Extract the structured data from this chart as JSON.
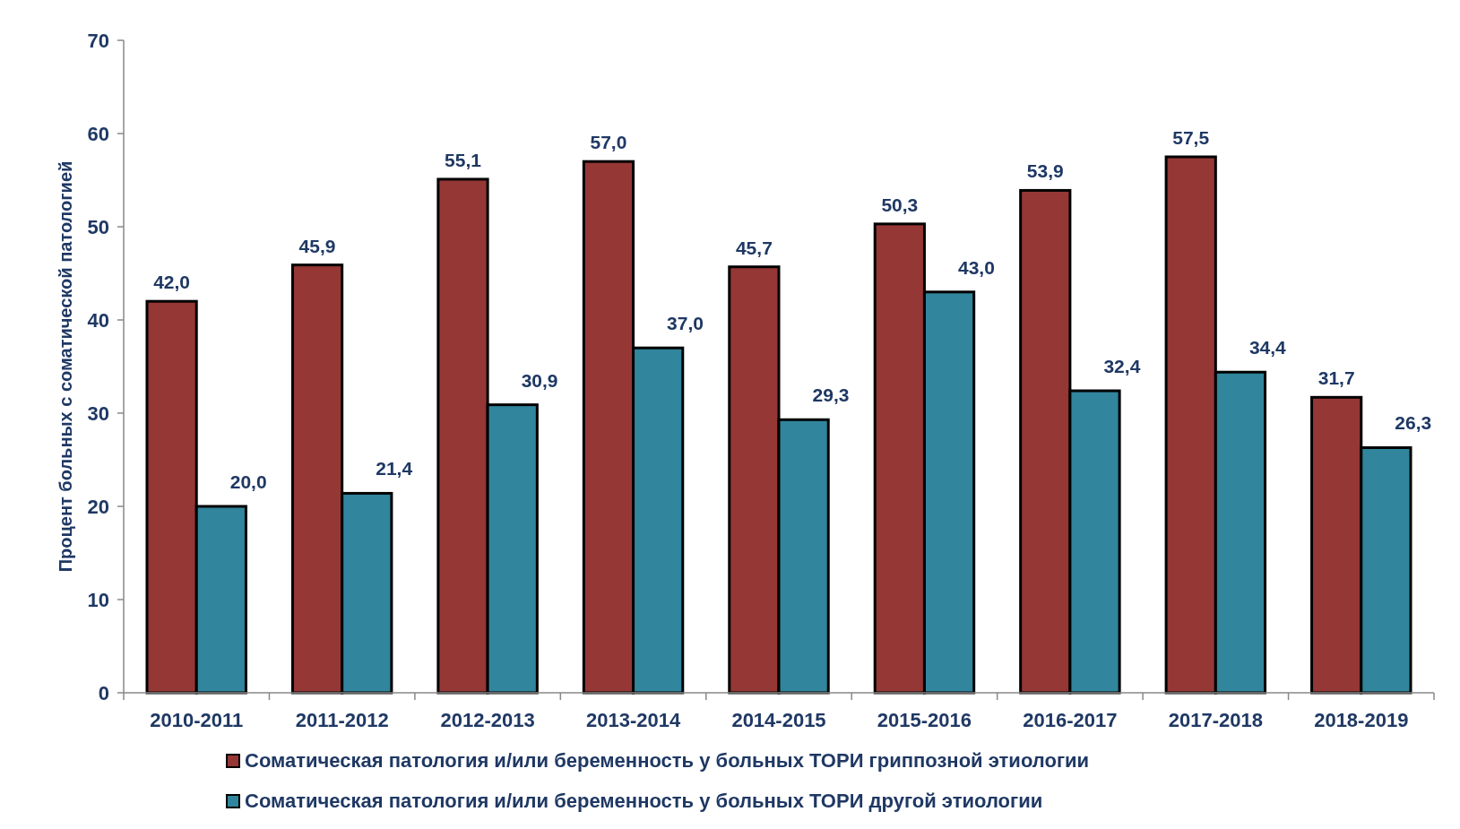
{
  "chart_data": {
    "type": "bar",
    "ylabel": "Процент больных с соматической патологией",
    "categories": [
      "2010-2011",
      "2011-2012",
      "2012-2013",
      "2013-2014",
      "2014-2015",
      "2015-2016",
      "2016-2017",
      "2017-2018",
      "2018-2019"
    ],
    "series": [
      {
        "name": "Соматическая патология и/или беременность у больных ТОРИ гриппозной этиологии",
        "color": "#953735",
        "values": [
          42.0,
          45.9,
          55.1,
          57.0,
          45.7,
          50.3,
          53.9,
          57.5,
          31.7
        ],
        "value_labels": [
          "42,0",
          "45,9",
          "55,1",
          "57,0",
          "45,7",
          "50,3",
          "53,9",
          "57,5",
          "31,7"
        ]
      },
      {
        "name": "Соматическая патология и/или беременность у больных ТОРИ другой этиологии",
        "color": "#31859c",
        "values": [
          20.0,
          21.4,
          30.9,
          37.0,
          29.3,
          43.0,
          32.4,
          34.4,
          26.3
        ],
        "value_labels": [
          "20,0",
          "21,4",
          "30,9",
          "37,0",
          "29,3",
          "43,0",
          "32,4",
          "34,4",
          "26,3"
        ]
      }
    ],
    "ylim": [
      0,
      70
    ],
    "yticks": [
      0,
      10,
      20,
      30,
      40,
      50,
      60,
      70
    ],
    "grid": false,
    "legend": "bottom"
  }
}
